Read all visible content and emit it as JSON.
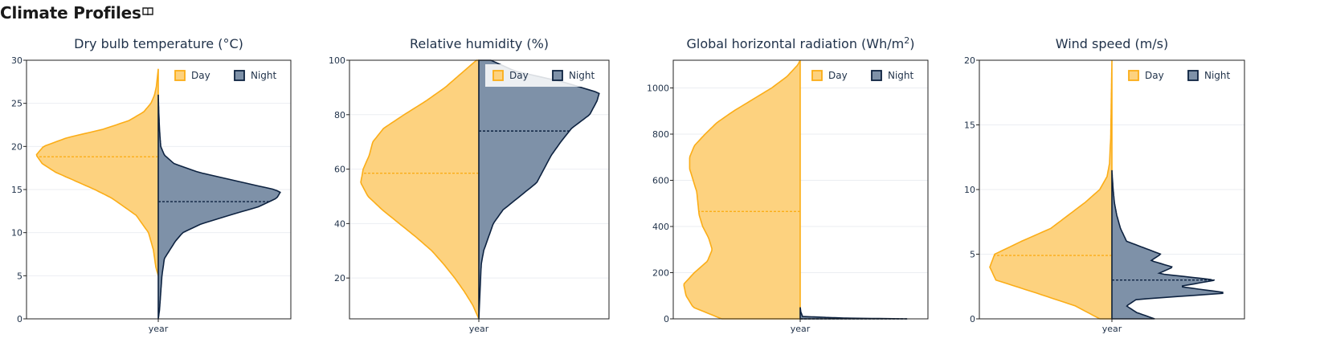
{
  "page": {
    "title": "Climate Profiles",
    "title_icon": "book-icon"
  },
  "colors": {
    "day": "#fbad17",
    "day_fill": "#fdd27f",
    "night": "#0d2240",
    "night_fill": "#7e91a8",
    "grid": "#ebeef2",
    "text": "#1f3149"
  },
  "chart_data": [
    {
      "type": "violin",
      "title": "Dry bulb temperature (°C)",
      "xlabel": "year",
      "ylim": [
        0,
        30
      ],
      "yticks": [
        0,
        5,
        10,
        15,
        20,
        25,
        30
      ],
      "legend": [
        "Day",
        "Night"
      ],
      "legend_position": "top-right",
      "series": [
        {
          "name": "Day",
          "side": "negative",
          "median": 18.8,
          "profile": [
            [
              5,
              0
            ],
            [
              6,
              0.02
            ],
            [
              8,
              0.04
            ],
            [
              10,
              0.08
            ],
            [
              12,
              0.18
            ],
            [
              14,
              0.38
            ],
            [
              15,
              0.52
            ],
            [
              16,
              0.68
            ],
            [
              17,
              0.84
            ],
            [
              18,
              0.95
            ],
            [
              19,
              1.0
            ],
            [
              20,
              0.94
            ],
            [
              21,
              0.75
            ],
            [
              22,
              0.45
            ],
            [
              23,
              0.24
            ],
            [
              24,
              0.12
            ],
            [
              25,
              0.06
            ],
            [
              26,
              0.03
            ],
            [
              27,
              0.015
            ],
            [
              28,
              0.008
            ],
            [
              29,
              0
            ]
          ]
        },
        {
          "name": "Night",
          "side": "positive",
          "median": 13.6,
          "profile": [
            [
              0,
              0
            ],
            [
              1,
              0.01
            ],
            [
              3,
              0.02
            ],
            [
              5,
              0.03
            ],
            [
              7,
              0.05
            ],
            [
              9,
              0.14
            ],
            [
              10,
              0.2
            ],
            [
              11,
              0.35
            ],
            [
              12,
              0.58
            ],
            [
              13,
              0.82
            ],
            [
              14,
              0.97
            ],
            [
              14.7,
              1.0
            ],
            [
              15,
              0.95
            ],
            [
              16,
              0.64
            ],
            [
              17,
              0.33
            ],
            [
              18,
              0.13
            ],
            [
              19,
              0.05
            ],
            [
              20,
              0.02
            ],
            [
              22,
              0.01
            ],
            [
              24,
              0.004
            ],
            [
              26,
              0
            ]
          ]
        }
      ]
    },
    {
      "type": "violin",
      "title": "Relative humidity (%)",
      "xlabel": "year",
      "ylim": [
        5,
        100
      ],
      "yticks": [
        20,
        40,
        60,
        80,
        100
      ],
      "legend": [
        "Day",
        "Night"
      ],
      "legend_position": "top-right",
      "series": [
        {
          "name": "Day",
          "side": "negative",
          "median": 58.5,
          "profile": [
            [
              5,
              0
            ],
            [
              10,
              0.05
            ],
            [
              15,
              0.12
            ],
            [
              20,
              0.2
            ],
            [
              25,
              0.29
            ],
            [
              30,
              0.39
            ],
            [
              35,
              0.52
            ],
            [
              40,
              0.66
            ],
            [
              45,
              0.8
            ],
            [
              50,
              0.92
            ],
            [
              55,
              0.98
            ],
            [
              60,
              0.96
            ],
            [
              65,
              0.91
            ],
            [
              70,
              0.88
            ],
            [
              75,
              0.79
            ],
            [
              80,
              0.62
            ],
            [
              85,
              0.44
            ],
            [
              90,
              0.28
            ],
            [
              95,
              0.15
            ],
            [
              100,
              0.02
            ]
          ]
        },
        {
          "name": "Night",
          "side": "positive",
          "median": 74,
          "profile": [
            [
              5,
              0
            ],
            [
              10,
              0.005
            ],
            [
              15,
              0.01
            ],
            [
              20,
              0.015
            ],
            [
              25,
              0.02
            ],
            [
              30,
              0.04
            ],
            [
              35,
              0.08
            ],
            [
              40,
              0.12
            ],
            [
              45,
              0.2
            ],
            [
              50,
              0.34
            ],
            [
              55,
              0.48
            ],
            [
              60,
              0.54
            ],
            [
              65,
              0.6
            ],
            [
              70,
              0.68
            ],
            [
              75,
              0.77
            ],
            [
              80,
              0.92
            ],
            [
              85,
              0.98
            ],
            [
              88,
              1.0
            ],
            [
              92,
              0.7
            ],
            [
              96,
              0.3
            ],
            [
              100,
              0.1
            ]
          ]
        }
      ]
    },
    {
      "type": "violin",
      "title": "Global horizontal radiation (Wh/m²)",
      "title_main": "Global horizontal radiation (Wh/m",
      "title_sup": "2",
      "title_end": ")",
      "xlabel": "year",
      "ylim": [
        0,
        1120
      ],
      "yticks": [
        0,
        200,
        400,
        600,
        800,
        1000
      ],
      "legend": [
        "Day",
        "Night"
      ],
      "legend_position": "top-right",
      "series": [
        {
          "name": "Day",
          "side": "negative",
          "median": 465,
          "profile": [
            [
              0,
              0.66
            ],
            [
              50,
              0.9
            ],
            [
              100,
              0.96
            ],
            [
              150,
              0.98
            ],
            [
              200,
              0.89
            ],
            [
              250,
              0.78
            ],
            [
              300,
              0.74
            ],
            [
              350,
              0.77
            ],
            [
              400,
              0.82
            ],
            [
              450,
              0.85
            ],
            [
              500,
              0.86
            ],
            [
              550,
              0.87
            ],
            [
              600,
              0.9
            ],
            [
              650,
              0.93
            ],
            [
              700,
              0.93
            ],
            [
              750,
              0.89
            ],
            [
              800,
              0.8
            ],
            [
              850,
              0.7
            ],
            [
              900,
              0.56
            ],
            [
              950,
              0.4
            ],
            [
              1000,
              0.24
            ],
            [
              1050,
              0.11
            ],
            [
              1100,
              0.02
            ],
            [
              1120,
              0
            ]
          ]
        },
        {
          "name": "Night",
          "side": "positive",
          "median": 0,
          "profile": [
            [
              0,
              0.9
            ],
            [
              3,
              0.4
            ],
            [
              10,
              0.02
            ],
            [
              30,
              0.005
            ],
            [
              50,
              0
            ]
          ]
        }
      ]
    },
    {
      "type": "violin",
      "title": "Wind speed (m/s)",
      "xlabel": "year",
      "ylim": [
        0,
        20
      ],
      "yticks": [
        0,
        5,
        10,
        15,
        20
      ],
      "legend": [
        "Day",
        "Night"
      ],
      "legend_position": "top-right",
      "series": [
        {
          "name": "Day",
          "side": "negative",
          "median": 4.9,
          "profile": [
            [
              0,
              0.1
            ],
            [
              1,
              0.3
            ],
            [
              2,
              0.62
            ],
            [
              3,
              0.95
            ],
            [
              4,
              1.0
            ],
            [
              5,
              0.96
            ],
            [
              6,
              0.74
            ],
            [
              7,
              0.5
            ],
            [
              8,
              0.36
            ],
            [
              9,
              0.22
            ],
            [
              10,
              0.1
            ],
            [
              11,
              0.04
            ],
            [
              12,
              0.02
            ],
            [
              14,
              0.01
            ],
            [
              17,
              0.005
            ],
            [
              20,
              0
            ]
          ]
        },
        {
          "name": "Night",
          "side": "positive",
          "median": 3.0,
          "profile": [
            [
              0,
              0.35
            ],
            [
              0.5,
              0.2
            ],
            [
              1,
              0.12
            ],
            [
              1.5,
              0.2
            ],
            [
              2,
              0.95
            ],
            [
              2.5,
              0.55
            ],
            [
              3,
              0.85
            ],
            [
              3.5,
              0.38
            ],
            [
              4,
              0.5
            ],
            [
              4.5,
              0.32
            ],
            [
              5,
              0.4
            ],
            [
              5.5,
              0.26
            ],
            [
              6,
              0.12
            ],
            [
              7,
              0.07
            ],
            [
              8,
              0.04
            ],
            [
              9,
              0.02
            ],
            [
              10,
              0.01
            ],
            [
              11,
              0.003
            ],
            [
              11.5,
              0
            ]
          ]
        }
      ]
    }
  ]
}
